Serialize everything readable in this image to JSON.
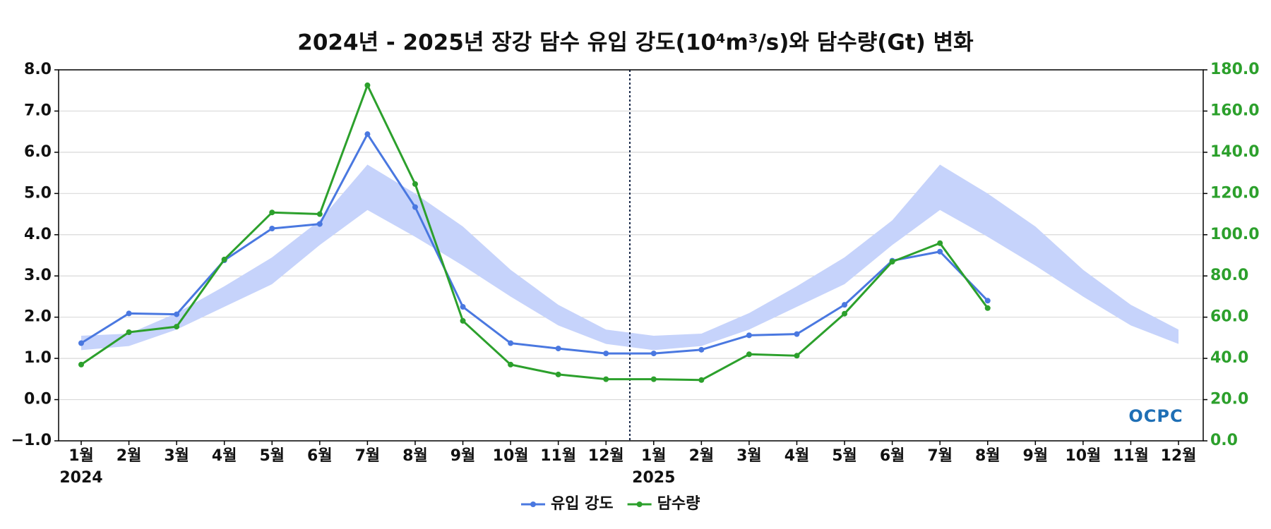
{
  "chart_data": {
    "type": "line",
    "title": "2024년 - 2025년 장강 담수 유입 강도(10⁴m³/s)와 담수량(Gt) 변화",
    "categories": [
      "1월",
      "2월",
      "3월",
      "4월",
      "5월",
      "6월",
      "7월",
      "8월",
      "9월",
      "10월",
      "11월",
      "12월",
      "1월",
      "2월",
      "3월",
      "4월",
      "5월",
      "6월",
      "7월",
      "8월",
      "9월",
      "10월",
      "11월",
      "12월"
    ],
    "years": [
      "2024",
      "2025"
    ],
    "series": [
      {
        "name": "유입 강도",
        "color": "#4a78e0",
        "axis": "y",
        "values": [
          1.37,
          2.09,
          2.07,
          3.38,
          4.15,
          4.26,
          6.44,
          4.67,
          2.25,
          1.37,
          1.24,
          1.12,
          1.12,
          1.21,
          1.56,
          1.59,
          2.3,
          3.37,
          3.59,
          2.4,
          null,
          null,
          null,
          null
        ]
      },
      {
        "name": "담수량",
        "color": "#2ca02c",
        "axis": "y2",
        "values": [
          37,
          52.7,
          55.4,
          88,
          110.8,
          110,
          172.5,
          124.6,
          58.2,
          37,
          32.2,
          29.9,
          29.9,
          29.5,
          42,
          41.3,
          61.7,
          86.9,
          95.9,
          64.4,
          null,
          null,
          null,
          null
        ]
      }
    ],
    "band": {
      "color": "#c6d3fb",
      "upper": [
        1.55,
        1.6,
        2.1,
        2.75,
        3.45,
        4.35,
        5.7,
        5.0,
        4.2,
        3.15,
        2.3,
        1.7,
        1.55,
        1.6,
        2.1,
        2.75,
        3.45,
        4.35,
        5.7,
        5.0,
        4.2,
        3.15,
        2.3,
        1.7
      ],
      "lower": [
        1.2,
        1.3,
        1.7,
        2.25,
        2.8,
        3.75,
        4.6,
        3.95,
        3.25,
        2.5,
        1.8,
        1.35,
        1.2,
        1.3,
        1.7,
        2.25,
        2.8,
        3.75,
        4.6,
        3.95,
        3.25,
        2.5,
        1.8,
        1.35
      ]
    },
    "ylim": [
      -1,
      8
    ],
    "yticks": [
      {
        "value": -1,
        "label": "−1.0"
      },
      {
        "value": 0,
        "label": "0.0"
      },
      {
        "value": 1,
        "label": "1.0"
      },
      {
        "value": 2,
        "label": "2.0"
      },
      {
        "value": 3,
        "label": "3.0"
      },
      {
        "value": 4,
        "label": "4.0"
      },
      {
        "value": 5,
        "label": "5.0"
      },
      {
        "value": 6,
        "label": "6.0"
      },
      {
        "value": 7,
        "label": "7.0"
      },
      {
        "value": 8,
        "label": "8.0"
      }
    ],
    "y2lim": [
      0,
      180
    ],
    "y2ticks": [
      {
        "value": 0,
        "label": "0.0"
      },
      {
        "value": 20,
        "label": "20.0"
      },
      {
        "value": 40,
        "label": "40.0"
      },
      {
        "value": 60,
        "label": "60.0"
      },
      {
        "value": 80,
        "label": "80.0"
      },
      {
        "value": 100,
        "label": "100.0"
      },
      {
        "value": 120,
        "label": "120.0"
      },
      {
        "value": 140,
        "label": "140.0"
      },
      {
        "value": 160,
        "label": "160.0"
      },
      {
        "value": 180,
        "label": "180.0"
      }
    ],
    "y2color": "#2ca02c",
    "grid": true,
    "legend": "bottom",
    "watermark": "OCPC"
  }
}
